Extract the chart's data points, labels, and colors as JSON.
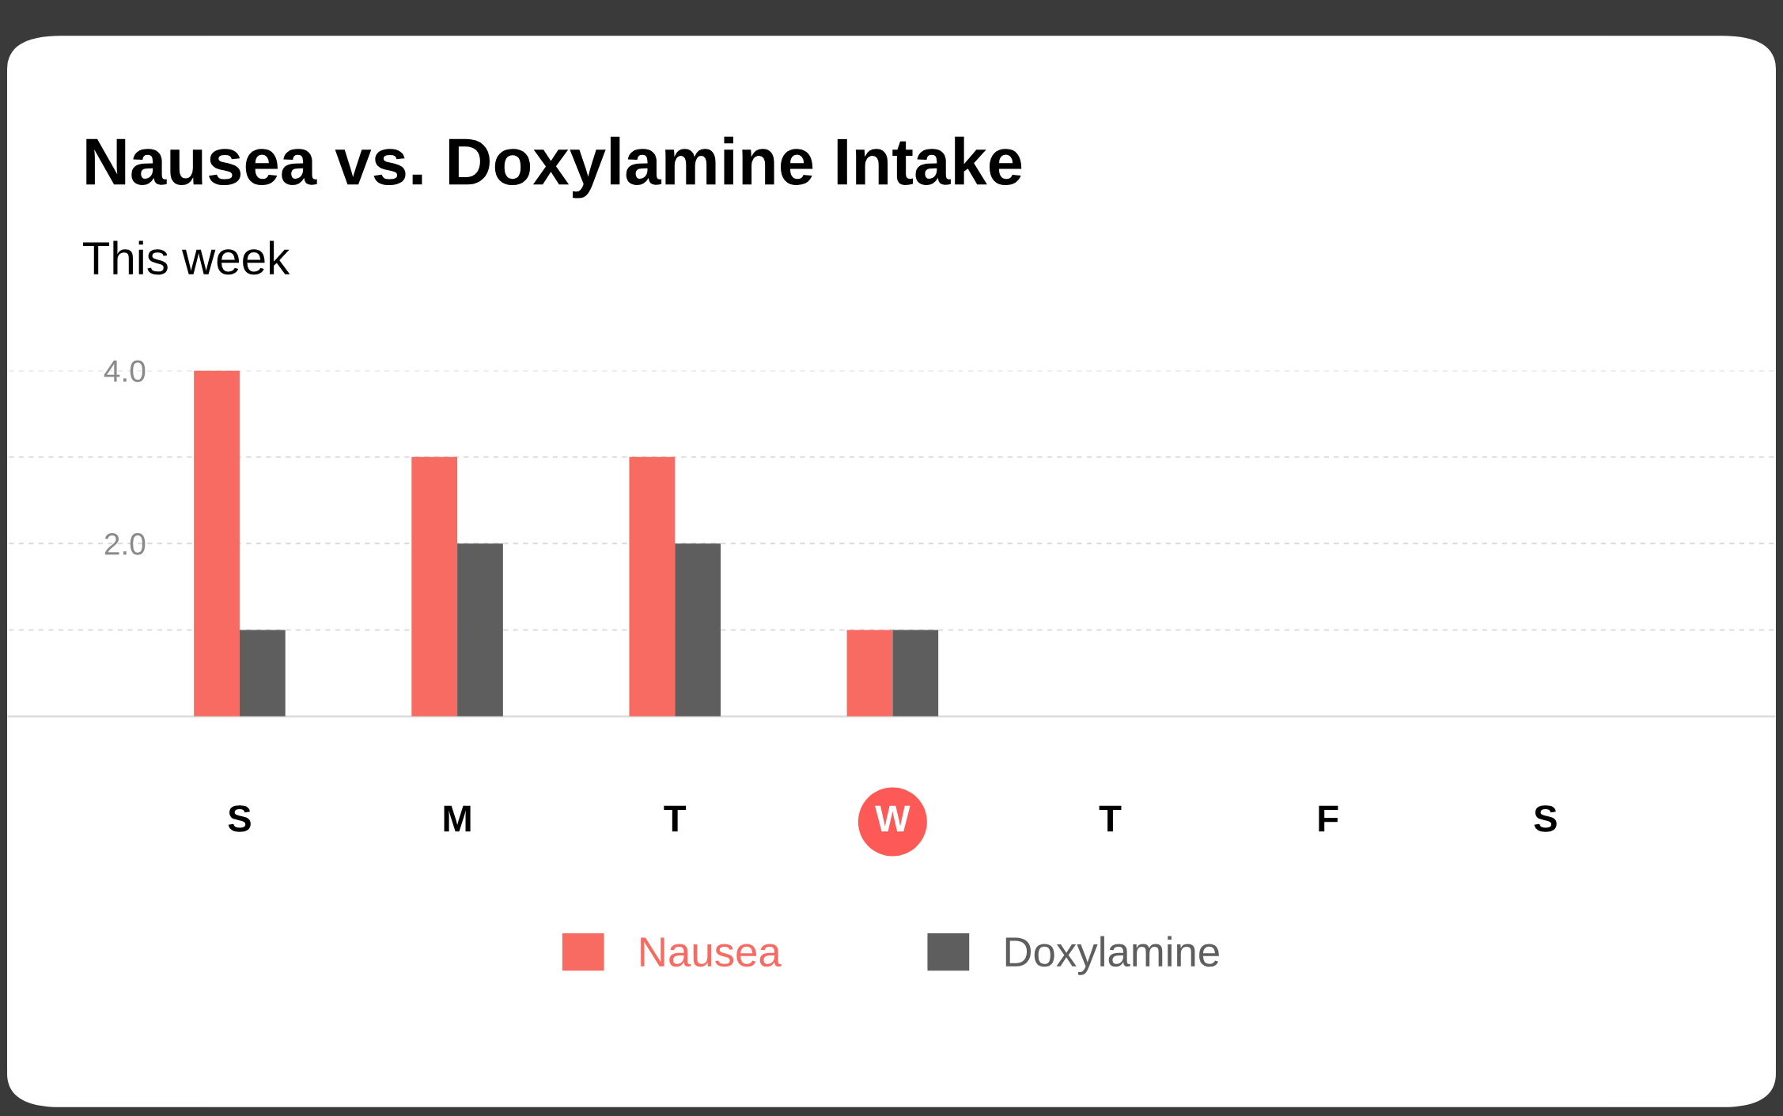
{
  "chart_data": {
    "type": "bar",
    "title": "Nausea vs. Doxylamine Intake",
    "subtitle": "This week",
    "categories": [
      "S",
      "M",
      "T",
      "W",
      "T",
      "F",
      "S"
    ],
    "series": [
      {
        "name": "Nausea",
        "color": "#f76b63",
        "values": [
          4,
          3,
          3,
          1,
          null,
          null,
          null
        ]
      },
      {
        "name": "Doxylamine",
        "color": "#5e5e5e",
        "values": [
          1,
          2,
          2,
          1,
          null,
          null,
          null
        ]
      }
    ],
    "ylim": [
      0,
      4
    ],
    "yticks": [
      {
        "value": 1,
        "label": null
      },
      {
        "value": 2,
        "label": "2.0"
      },
      {
        "value": 3,
        "label": null
      },
      {
        "value": 4,
        "label": "4.0"
      }
    ],
    "grid": "y",
    "legend": "bottom"
  }
}
